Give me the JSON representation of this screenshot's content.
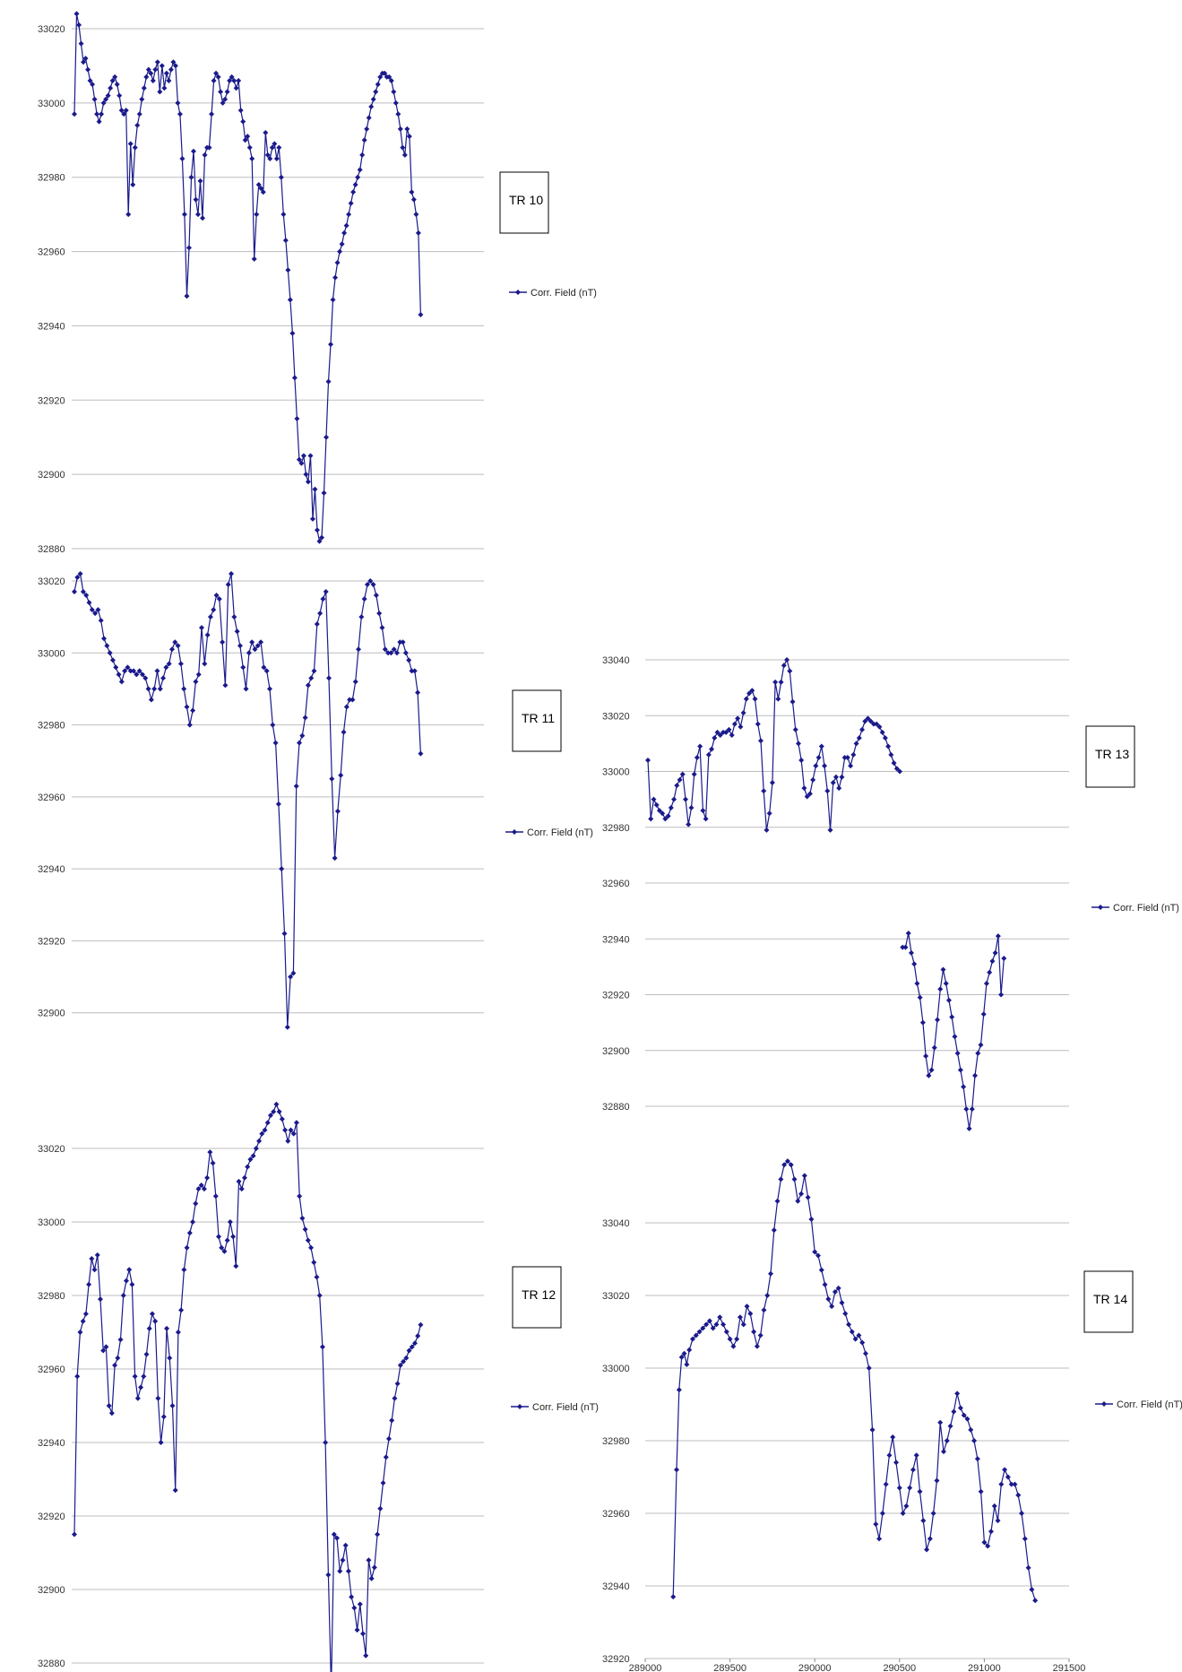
{
  "colors": {
    "series": "#1a1a8c",
    "grid": "#bdbdbd",
    "text": "#333333"
  },
  "chart_data": [
    {
      "type": "line",
      "title": "TR 10",
      "ylim": [
        32880,
        33020
      ],
      "yticks": [
        32880,
        32900,
        32920,
        32940,
        32960,
        32980,
        33000,
        33020
      ],
      "grid": "horizontal",
      "legend": "right",
      "series": [
        {
          "name": "Corr. Field (nT)",
          "y": [
            32997,
            33024,
            33021,
            33016,
            33011,
            33012,
            33009,
            33006,
            33005,
            33001,
            32997,
            32995,
            32997,
            33000,
            33001,
            33002,
            33004,
            33006,
            33007,
            33005,
            33002,
            32998,
            32997,
            32998,
            32970,
            32989,
            32978,
            32988,
            32994,
            32997,
            33001,
            33004,
            33007,
            33009,
            33008,
            33006,
            33009,
            33011,
            33003,
            33010,
            33004,
            33008,
            33006,
            33009,
            33011,
            33010,
            33000,
            32997,
            32985,
            32970,
            32948,
            32961,
            32980,
            32987,
            32974,
            32970,
            32979,
            32969,
            32986,
            32988,
            32988,
            32997,
            33006,
            33008,
            33007,
            33003,
            33000,
            33001,
            33003,
            33006,
            33007,
            33006,
            33004,
            33006,
            32998,
            32995,
            32990,
            32991,
            32988,
            32985,
            32958,
            32970,
            32978,
            32977,
            32976,
            32992,
            32986,
            32985,
            32988,
            32989,
            32985,
            32988,
            32980,
            32970,
            32963,
            32955,
            32947,
            32938,
            32926,
            32915,
            32904,
            32903,
            32905,
            32900,
            32898,
            32905,
            32888,
            32896,
            32885,
            32882,
            32883,
            32895,
            32910,
            32925,
            32935,
            32947,
            32953,
            32957,
            32960,
            32962,
            32965,
            32967,
            32970,
            32973,
            32976,
            32978,
            32980,
            32982,
            32986,
            32990,
            32993,
            32996,
            32999,
            33001,
            33003,
            33005,
            33007,
            33008,
            33008,
            33007,
            33007,
            33006,
            33003,
            33000,
            32997,
            32993,
            32988,
            32986,
            32993,
            32991,
            32976,
            32974,
            32970,
            32965,
            32943
          ]
        }
      ]
    },
    {
      "type": "line",
      "title": "TR 11",
      "ylim": [
        32880,
        33020
      ],
      "yticks": [
        32900,
        32920,
        32940,
        32960,
        32980,
        33000,
        33020
      ],
      "grid": "horizontal",
      "legend": "right",
      "series": [
        {
          "name": "Corr. Field (nT)",
          "y": [
            33017,
            33021,
            33022,
            33017,
            33016,
            33014,
            33012,
            33011,
            33012,
            33009,
            33004,
            33002,
            33000,
            32998,
            32996,
            32994,
            32992,
            32995,
            32996,
            32995,
            32995,
            32994,
            32995,
            32994,
            32993,
            32990,
            32987,
            32990,
            32995,
            32990,
            32993,
            32996,
            32997,
            33001,
            33003,
            33002,
            32997,
            32990,
            32985,
            32980,
            32984,
            32992,
            32994,
            33007,
            32997,
            33005,
            33010,
            33012,
            33016,
            33015,
            33003,
            32991,
            33019,
            33022,
            33010,
            33006,
            33002,
            32996,
            32990,
            33000,
            33003,
            33001,
            33002,
            33003,
            32996,
            32995,
            32990,
            32980,
            32975,
            32958,
            32940,
            32922,
            32896,
            32910,
            32911,
            32963,
            32975,
            32977,
            32982,
            32991,
            32993,
            32995,
            33008,
            33011,
            33015,
            33017,
            32993,
            32965,
            32943,
            32956,
            32966,
            32978,
            32985,
            32987,
            32987,
            32992,
            33001,
            33010,
            33015,
            33019,
            33020,
            33019,
            33016,
            33011,
            33007,
            33001,
            33000,
            33000,
            33001,
            33000,
            33003,
            33003,
            33000,
            32998,
            32995,
            32995,
            32989,
            32972
          ]
        }
      ]
    },
    {
      "type": "line",
      "title": "TR 12",
      "ylim": [
        32880,
        33020
      ],
      "yticks": [
        32880,
        32900,
        32920,
        32940,
        32960,
        32980,
        33000,
        33020
      ],
      "grid": "horizontal",
      "legend": "right",
      "series": [
        {
          "name": "Corr. Field (nT)",
          "y": [
            32915,
            32958,
            32970,
            32973,
            32975,
            32983,
            32990,
            32987,
            32991,
            32979,
            32965,
            32966,
            32950,
            32948,
            32961,
            32963,
            32968,
            32980,
            32984,
            32987,
            32983,
            32958,
            32952,
            32955,
            32958,
            32964,
            32971,
            32975,
            32973,
            32952,
            32940,
            32947,
            32971,
            32963,
            32950,
            32927,
            32970,
            32976,
            32987,
            32993,
            32997,
            33000,
            33005,
            33009,
            33010,
            33009,
            33012,
            33019,
            33016,
            33007,
            32996,
            32993,
            32992,
            32995,
            33000,
            32996,
            32988,
            33011,
            33009,
            33012,
            33015,
            33017,
            33018,
            33020,
            33022,
            33024,
            33025,
            33027,
            33029,
            33030,
            33032,
            33030,
            33028,
            33025,
            33022,
            33025,
            33024,
            33027,
            33007,
            33001,
            32998,
            32995,
            32993,
            32989,
            32985,
            32980,
            32966,
            32940,
            32904,
            32873,
            32915,
            32914,
            32905,
            32908,
            32912,
            32905,
            32898,
            32895,
            32889,
            32896,
            32888,
            32882,
            32908,
            32903,
            32906,
            32915,
            32922,
            32929,
            32936,
            32941,
            32946,
            32952,
            32956,
            32961,
            32962,
            32963,
            32965,
            32966,
            32967,
            32969,
            32972
          ]
        }
      ]
    },
    {
      "type": "line",
      "title": "TR 13",
      "ylim": [
        32880,
        33040
      ],
      "yticks": [
        32880,
        32900,
        32920,
        32940,
        32960,
        32980,
        33000,
        33020,
        33040
      ],
      "grid": "horizontal",
      "legend": "right",
      "series": [
        {
          "name": "Corr. Field (nT)",
          "y": [
            33004,
            32983,
            32990,
            32988,
            32986,
            32985,
            32983,
            32984,
            32987,
            32990,
            32995,
            32997,
            32999,
            32990,
            32981,
            32987,
            32999,
            33005,
            33009,
            32986,
            32983,
            33006,
            33008,
            33012,
            33014,
            33013,
            33014,
            33014,
            33015,
            33013,
            33017,
            33019,
            33016,
            33021,
            33026,
            33028,
            33029,
            33026,
            33017,
            33011,
            32993,
            32979,
            32985,
            32996,
            33032,
            33026,
            33032,
            33038,
            33040,
            33036,
            33025,
            33015,
            33010,
            33004,
            32994,
            32991,
            32992,
            32997,
            33002,
            33005,
            33009,
            33002,
            32993,
            32979,
            32996,
            32998,
            32994,
            32998,
            33005,
            33005,
            33002,
            33006,
            33010,
            33012,
            33015,
            33018,
            33019,
            33018,
            33017,
            33017,
            33016,
            33014,
            33012,
            33009,
            33006,
            33003,
            33001,
            33000,
            32937,
            32937,
            32942,
            32935,
            32931,
            32924,
            32919,
            32910,
            32898,
            32891,
            32893,
            32901,
            32911,
            32922,
            32929,
            32924,
            32918,
            32912,
            32905,
            32899,
            32893,
            32887,
            32879,
            32872,
            32879,
            32891,
            32899,
            32902,
            32913,
            32924,
            32928,
            32932,
            32935,
            32941,
            32920,
            32933
          ]
        }
      ]
    },
    {
      "type": "line",
      "title": "TR 14",
      "xlim": [
        289000,
        291500
      ],
      "xticks": [
        289000,
        289500,
        290000,
        290500,
        291000,
        291500
      ],
      "ylim": [
        32920,
        33060
      ],
      "yticks": [
        32920,
        32940,
        32960,
        32980,
        33000,
        33020,
        33040
      ],
      "grid": "horizontal",
      "legend": "right",
      "series": [
        {
          "name": "Corr. Field (nT)",
          "x": [
            289165,
            289185,
            289200,
            289215,
            289230,
            289245,
            289260,
            289280,
            289300,
            289320,
            289340,
            289360,
            289380,
            289400,
            289420,
            289440,
            289460,
            289480,
            289500,
            289520,
            289540,
            289560,
            289580,
            289600,
            289620,
            289640,
            289660,
            289680,
            289700,
            289720,
            289740,
            289760,
            289780,
            289800,
            289820,
            289840,
            289860,
            289880,
            289900,
            289920,
            289940,
            289960,
            289980,
            290000,
            290020,
            290040,
            290060,
            290080,
            290100,
            290120,
            290140,
            290160,
            290180,
            290200,
            290220,
            290240,
            290260,
            290280,
            290300,
            290320,
            290340,
            290360,
            290380,
            290400,
            290420,
            290440,
            290460,
            290480,
            290500,
            290520,
            290540,
            290560,
            290580,
            290600,
            290620,
            290640,
            290660,
            290680,
            290700,
            290720,
            290740,
            290760,
            290780,
            290800,
            290820,
            290840,
            290860,
            290880,
            290900,
            290920,
            290940,
            290960,
            290980,
            291000,
            291020,
            291040,
            291060,
            291080,
            291100,
            291120,
            291140,
            291160,
            291180,
            291200,
            291220,
            291240,
            291260,
            291280,
            291300
          ],
          "y": [
            32937,
            32972,
            32994,
            33003,
            33004,
            33001,
            33005,
            33008,
            33009,
            33010,
            33011,
            33012,
            33013,
            33011,
            33012,
            33014,
            33012,
            33010,
            33008,
            33006,
            33008,
            33014,
            33012,
            33017,
            33015,
            33010,
            33006,
            33009,
            33016,
            33020,
            33026,
            33038,
            33046,
            33052,
            33056,
            33057,
            33056,
            33052,
            33046,
            33048,
            33053,
            33047,
            33041,
            33032,
            33031,
            33027,
            33023,
            33019,
            33017,
            33021,
            33022,
            33018,
            33015,
            33012,
            33010,
            33008,
            33009,
            33007,
            33004,
            33000,
            32983,
            32957,
            32953,
            32960,
            32968,
            32976,
            32981,
            32974,
            32967,
            32960,
            32962,
            32967,
            32972,
            32976,
            32966,
            32958,
            32950,
            32953,
            32960,
            32969,
            32985,
            32977,
            32980,
            32984,
            32988,
            32993,
            32989,
            32987,
            32986,
            32983,
            32980,
            32975,
            32966,
            32952,
            32951,
            32955,
            32962,
            32958,
            32968,
            32972,
            32970,
            32968,
            32968,
            32965,
            32960,
            32953,
            32945,
            32939,
            32936
          ]
        }
      ]
    }
  ]
}
